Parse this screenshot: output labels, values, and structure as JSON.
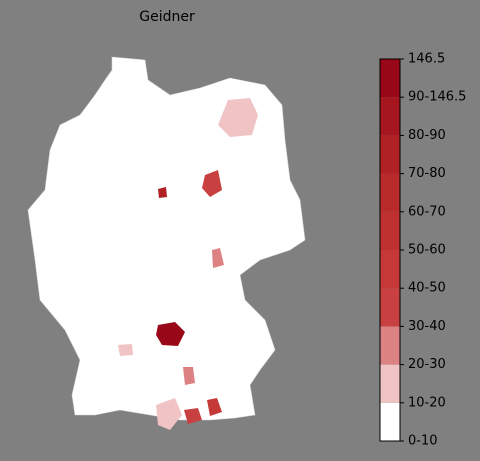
{
  "title": "Geidner",
  "colorbar": {
    "ticks": [
      "0-10",
      "10-20",
      "20-30",
      "30-40",
      "40-50",
      "50-60",
      "60-70",
      "70-80",
      "80-90",
      "90-146.5",
      "146.5"
    ],
    "colors": [
      "#ffffff",
      "#f0c4c4",
      "#dc8282",
      "#c94040",
      "#c53939",
      "#bf3131",
      "#b92a2b",
      "#b02124",
      "#a5161e",
      "#990818"
    ]
  }
}
